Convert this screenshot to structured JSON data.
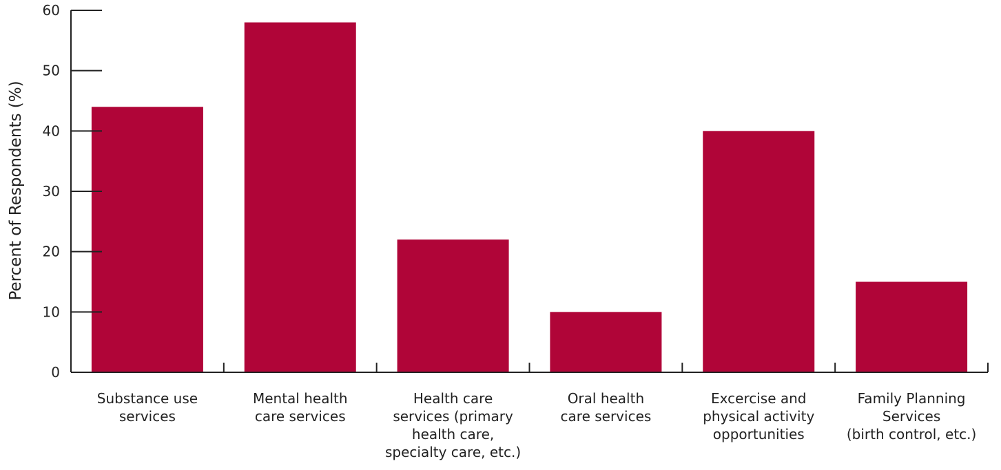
{
  "chart_data": {
    "type": "bar",
    "title": "",
    "xlabel": "",
    "ylabel": "Percent of Respondents (%)",
    "ylim": [
      0,
      60
    ],
    "yticks": [
      0,
      10,
      20,
      30,
      40,
      50,
      60
    ],
    "ytick_labels": [
      "0",
      "10",
      "20",
      "30",
      "40",
      "50",
      "60"
    ],
    "grid": false,
    "legend": "none",
    "bar_color": "#b00538",
    "categories": [
      [
        "Substance use",
        "services"
      ],
      [
        "Mental health",
        "care services"
      ],
      [
        "Health care",
        "services (primary",
        "health care,",
        "specialty care, etc.)"
      ],
      [
        "Oral health",
        "care services"
      ],
      [
        "Excercise and",
        "physical activity",
        "opportunities"
      ],
      [
        "Family Planning",
        "Services",
        "(birth control, etc.)"
      ]
    ],
    "values": [
      44,
      58,
      22,
      10,
      40,
      15
    ]
  }
}
